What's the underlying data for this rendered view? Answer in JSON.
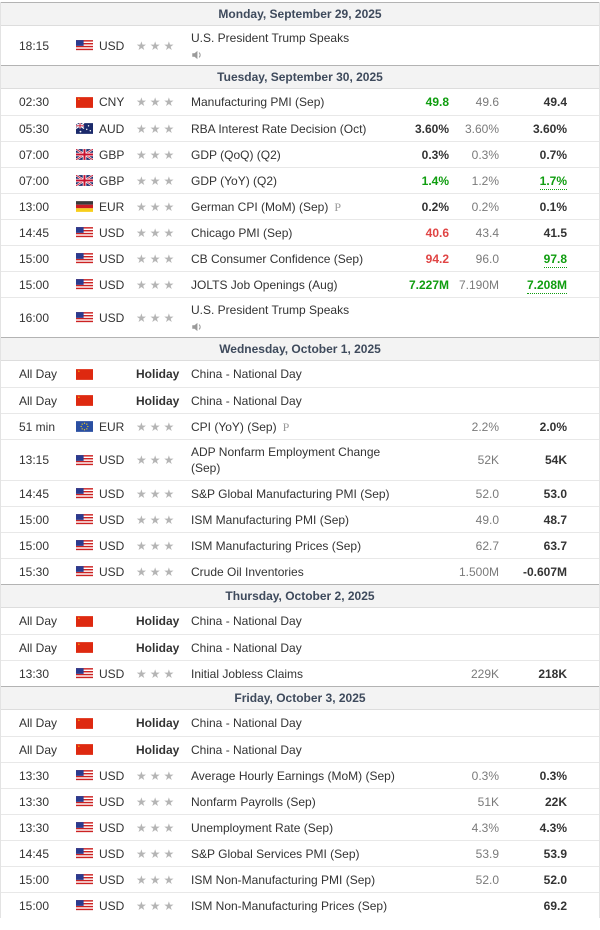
{
  "meta": {
    "prelim_marker": "P",
    "columns": [
      "time",
      "currency",
      "importance",
      "event",
      "actual",
      "forecast",
      "previous"
    ],
    "colors": {
      "positive": "#0f9d0f",
      "negative": "#e04444",
      "forecast_text": "#7a7a7a",
      "previous_text": "#333333",
      "header_bg": "#f3f3f3",
      "header_text": "#3e4a5c",
      "star": "#b5b5b5"
    }
  },
  "sections": [
    {
      "date": "Monday, September 29, 2025",
      "rows": [
        {
          "time": "18:15",
          "flag": "US",
          "currency": "USD",
          "stars": 3,
          "event": "U.S. President Trump Speaks",
          "speech": true,
          "actual": "",
          "forecast": "",
          "previous": ""
        }
      ]
    },
    {
      "date": "Tuesday, September 30, 2025",
      "rows": [
        {
          "time": "02:30",
          "flag": "CN",
          "currency": "CNY",
          "stars": 3,
          "event": "Manufacturing PMI (Sep)",
          "actual": "49.8",
          "actual_state": "better",
          "forecast": "49.6",
          "previous": "49.4"
        },
        {
          "time": "05:30",
          "flag": "AU",
          "currency": "AUD",
          "stars": 3,
          "event": "RBA Interest Rate Decision (Oct)",
          "actual": "3.60%",
          "actual_state": "neutral",
          "forecast": "3.60%",
          "previous": "3.60%"
        },
        {
          "time": "07:00",
          "flag": "GB",
          "currency": "GBP",
          "stars": 3,
          "event": "GDP (QoQ) (Q2)",
          "actual": "0.3%",
          "actual_state": "neutral",
          "forecast": "0.3%",
          "previous": "0.7%"
        },
        {
          "time": "07:00",
          "flag": "GB",
          "currency": "GBP",
          "stars": 3,
          "event": "GDP (YoY) (Q2)",
          "actual": "1.4%",
          "actual_state": "better",
          "forecast": "1.2%",
          "previous": "1.7%",
          "previous_state": "better"
        },
        {
          "time": "13:00",
          "flag": "DE",
          "currency": "EUR",
          "stars": 3,
          "event": "German CPI (MoM) (Sep)",
          "prelim": true,
          "actual": "0.2%",
          "actual_state": "neutral",
          "forecast": "0.2%",
          "previous": "0.1%"
        },
        {
          "time": "14:45",
          "flag": "US",
          "currency": "USD",
          "stars": 3,
          "event": "Chicago PMI (Sep)",
          "actual": "40.6",
          "actual_state": "worse",
          "forecast": "43.4",
          "previous": "41.5"
        },
        {
          "time": "15:00",
          "flag": "US",
          "currency": "USD",
          "stars": 3,
          "event": "CB Consumer Confidence (Sep)",
          "actual": "94.2",
          "actual_state": "worse",
          "forecast": "96.0",
          "previous": "97.8",
          "previous_state": "better"
        },
        {
          "time": "15:00",
          "flag": "US",
          "currency": "USD",
          "stars": 3,
          "event": "JOLTS Job Openings (Aug)",
          "actual": "7.227M",
          "actual_state": "better",
          "forecast": "7.190M",
          "previous": "7.208M",
          "previous_state": "better"
        },
        {
          "time": "16:00",
          "flag": "US",
          "currency": "USD",
          "stars": 3,
          "event": "U.S. President Trump Speaks",
          "speech": true,
          "actual": "",
          "forecast": "",
          "previous": ""
        }
      ]
    },
    {
      "date": "Wednesday, October 1, 2025",
      "rows": [
        {
          "time": "All Day",
          "flag": "CN",
          "badge": "Holiday",
          "event": "China - National Day"
        },
        {
          "time": "All Day",
          "flag": "CN",
          "badge": "Holiday",
          "event": "China - National Day"
        },
        {
          "time": "51 min",
          "flag": "EU",
          "currency": "EUR",
          "stars": 3,
          "event": "CPI (YoY) (Sep)",
          "prelim": true,
          "actual": "",
          "forecast": "2.2%",
          "previous": "2.0%"
        },
        {
          "time": "13:15",
          "flag": "US",
          "currency": "USD",
          "stars": 3,
          "event": "ADP Nonfarm Employment Change (Sep)",
          "actual": "",
          "forecast": "52K",
          "previous": "54K"
        },
        {
          "time": "14:45",
          "flag": "US",
          "currency": "USD",
          "stars": 3,
          "event": "S&P Global Manufacturing PMI (Sep)",
          "actual": "",
          "forecast": "52.0",
          "previous": "53.0"
        },
        {
          "time": "15:00",
          "flag": "US",
          "currency": "USD",
          "stars": 3,
          "event": "ISM Manufacturing PMI (Sep)",
          "actual": "",
          "forecast": "49.0",
          "previous": "48.7"
        },
        {
          "time": "15:00",
          "flag": "US",
          "currency": "USD",
          "stars": 3,
          "event": "ISM Manufacturing Prices (Sep)",
          "actual": "",
          "forecast": "62.7",
          "previous": "63.7"
        },
        {
          "time": "15:30",
          "flag": "US",
          "currency": "USD",
          "stars": 3,
          "event": "Crude Oil Inventories",
          "actual": "",
          "forecast": "1.500M",
          "previous": "-0.607M"
        }
      ]
    },
    {
      "date": "Thursday, October 2, 2025",
      "rows": [
        {
          "time": "All Day",
          "flag": "CN",
          "badge": "Holiday",
          "event": "China - National Day"
        },
        {
          "time": "All Day",
          "flag": "CN",
          "badge": "Holiday",
          "event": "China - National Day"
        },
        {
          "time": "13:30",
          "flag": "US",
          "currency": "USD",
          "stars": 3,
          "event": "Initial Jobless Claims",
          "actual": "",
          "forecast": "229K",
          "previous": "218K"
        }
      ]
    },
    {
      "date": "Friday, October 3, 2025",
      "rows": [
        {
          "time": "All Day",
          "flag": "CN",
          "badge": "Holiday",
          "event": "China - National Day"
        },
        {
          "time": "All Day",
          "flag": "CN",
          "badge": "Holiday",
          "event": "China - National Day"
        },
        {
          "time": "13:30",
          "flag": "US",
          "currency": "USD",
          "stars": 3,
          "event": "Average Hourly Earnings (MoM) (Sep)",
          "actual": "",
          "forecast": "0.3%",
          "previous": "0.3%"
        },
        {
          "time": "13:30",
          "flag": "US",
          "currency": "USD",
          "stars": 3,
          "event": "Nonfarm Payrolls (Sep)",
          "actual": "",
          "forecast": "51K",
          "previous": "22K"
        },
        {
          "time": "13:30",
          "flag": "US",
          "currency": "USD",
          "stars": 3,
          "event": "Unemployment Rate (Sep)",
          "actual": "",
          "forecast": "4.3%",
          "previous": "4.3%"
        },
        {
          "time": "14:45",
          "flag": "US",
          "currency": "USD",
          "stars": 3,
          "event": "S&P Global Services PMI (Sep)",
          "actual": "",
          "forecast": "53.9",
          "previous": "53.9"
        },
        {
          "time": "15:00",
          "flag": "US",
          "currency": "USD",
          "stars": 3,
          "event": "ISM Non-Manufacturing PMI (Sep)",
          "actual": "",
          "forecast": "52.0",
          "previous": "52.0"
        },
        {
          "time": "15:00",
          "flag": "US",
          "currency": "USD",
          "stars": 3,
          "event": "ISM Non-Manufacturing Prices (Sep)",
          "actual": "",
          "forecast": "",
          "previous": "69.2"
        }
      ]
    }
  ]
}
